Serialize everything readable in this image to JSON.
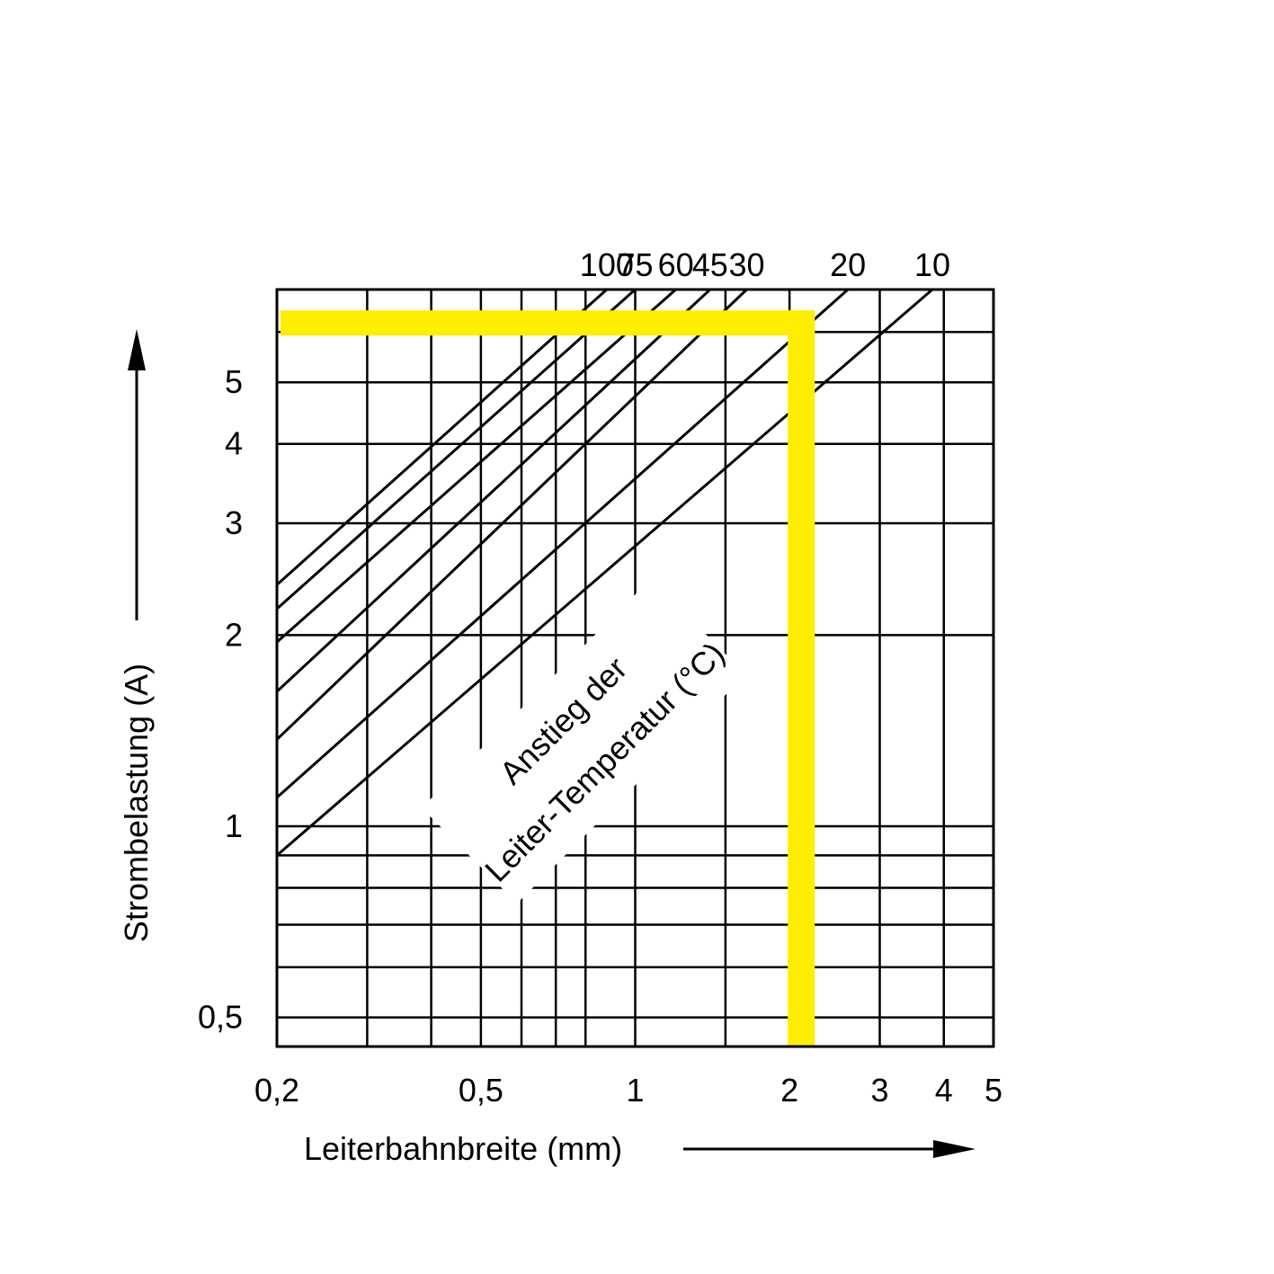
{
  "chart_data": {
    "type": "line",
    "xscale": "log",
    "yscale": "log",
    "xlabel": "Leiterbahnbreite (mm)",
    "ylabel": "Strombelastung (A)",
    "annotation_line1": "Anstieg der",
    "annotation_line2": "Leiter-Temperatur (°C)",
    "xlim": [
      0.2,
      5
    ],
    "ylim": [
      0.45,
      7
    ],
    "x_ticks": [
      "0,2",
      "0,5",
      "1",
      "2",
      "3",
      "4",
      "5"
    ],
    "x_tick_values": [
      0.2,
      0.5,
      1,
      2,
      3,
      4,
      5
    ],
    "y_ticks": [
      "0,5",
      "1",
      "2",
      "3",
      "4",
      "5"
    ],
    "y_tick_values": [
      0.5,
      1,
      2,
      3,
      4,
      5
    ],
    "x_grid": [
      0.3,
      0.4,
      0.5,
      0.6,
      0.7,
      0.8,
      1,
      1.5,
      2,
      3,
      4
    ],
    "y_grid": [
      0.5,
      0.6,
      0.7,
      0.8,
      0.9,
      1,
      2,
      3,
      4,
      5,
      6
    ],
    "series": [
      {
        "name": "100",
        "points": [
          [
            0.2,
            2.4
          ],
          [
            0.88,
            7.0
          ]
        ]
      },
      {
        "name": "75",
        "points": [
          [
            0.2,
            2.2
          ],
          [
            1.0,
            7.0
          ]
        ]
      },
      {
        "name": "60",
        "points": [
          [
            0.2,
            1.95
          ],
          [
            1.2,
            7.0
          ]
        ]
      },
      {
        "name": "45",
        "points": [
          [
            0.2,
            1.63
          ],
          [
            1.4,
            7.0
          ]
        ]
      },
      {
        "name": "30",
        "points": [
          [
            0.2,
            1.37
          ],
          [
            1.65,
            7.0
          ]
        ]
      },
      {
        "name": "20",
        "points": [
          [
            0.2,
            1.11
          ],
          [
            2.6,
            7.0
          ]
        ]
      },
      {
        "name": "10",
        "points": [
          [
            0.2,
            0.9
          ],
          [
            3.8,
            7.0
          ]
        ]
      }
    ],
    "highlight": {
      "color": "#FFEE00",
      "x": 2.1,
      "y": 6.2
    }
  }
}
